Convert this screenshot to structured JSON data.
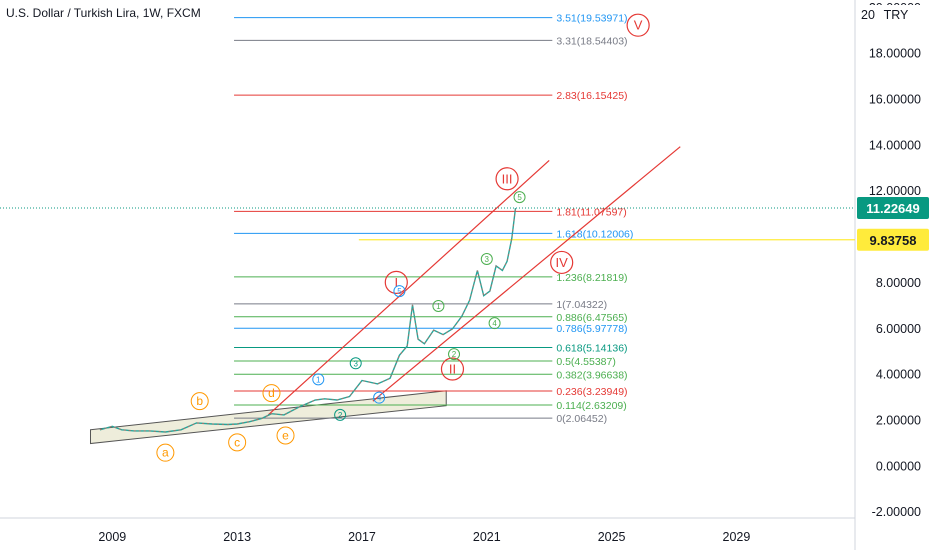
{
  "header": {
    "title": "U.S. Dollar / Turkish Lira, 1W, FXCM"
  },
  "colors": {
    "red": "#e53935",
    "blue": "#2196f3",
    "gray": "#787b86",
    "green": "#4caf50",
    "teal": "#089981",
    "orange": "#ff9800",
    "cyan": "#00bcd4",
    "yellow": "#ffeb3b",
    "price_tag_bg": "#089981",
    "yellow_tag_bg": "#ffeb3b",
    "channel_fill": "#ecebd7"
  },
  "chart_data": {
    "type": "line",
    "symbol": "U.S. Dollar / Turkish Lira, 1W, FXCM",
    "ylim": [
      -2.3,
      20.3
    ],
    "xlim": [
      2005.4,
      2032.8
    ],
    "y_axis": {
      "unit_label": "TRY",
      "ticks": [
        {
          "value": 20,
          "label": "20.00000"
        },
        {
          "value": 18,
          "label": "18.00000"
        },
        {
          "value": 16,
          "label": "16.00000"
        },
        {
          "value": 14,
          "label": "14.00000"
        },
        {
          "value": 12,
          "label": "12.00000"
        },
        {
          "value": 8,
          "label": "8.00000"
        },
        {
          "value": 6,
          "label": "6.00000"
        },
        {
          "value": 4,
          "label": "4.00000"
        },
        {
          "value": 2,
          "label": "2.00000"
        },
        {
          "value": 0,
          "label": "0.00000"
        },
        {
          "value": -2,
          "label": "-2.00000"
        }
      ]
    },
    "x_axis": {
      "ticks": [
        {
          "value": 2009,
          "label": "2009"
        },
        {
          "value": 2013,
          "label": "2013"
        },
        {
          "value": 2017,
          "label": "2017"
        },
        {
          "value": 2021,
          "label": "2021"
        },
        {
          "value": 2025,
          "label": "2025"
        },
        {
          "value": 2029,
          "label": "2029"
        }
      ]
    },
    "price_tags": [
      {
        "value": 11.22649,
        "label": "11.22649"
      },
      {
        "value": 9.83758,
        "label": "9.83758"
      }
    ],
    "series": [
      {
        "x": [
          2008.6,
          2009.0,
          2009.3,
          2009.7,
          2010.2,
          2010.7,
          2011.2,
          2011.7,
          2012.2,
          2012.7,
          2013.0,
          2013.4,
          2013.8,
          2014.1,
          2014.5,
          2015.0,
          2015.5,
          2015.8,
          2016.2,
          2016.6,
          2017.0,
          2017.5,
          2017.9,
          2018.2,
          2018.45,
          2018.62,
          2018.8,
          2019.0,
          2019.3,
          2019.6,
          2019.9,
          2020.2,
          2020.45,
          2020.7,
          2020.9,
          2021.1,
          2021.3,
          2021.5,
          2021.65,
          2021.8,
          2021.92
        ],
        "y": [
          1.55,
          1.7,
          1.55,
          1.5,
          1.5,
          1.45,
          1.55,
          1.85,
          1.8,
          1.78,
          1.8,
          1.9,
          2.05,
          2.25,
          2.2,
          2.55,
          2.85,
          2.9,
          2.85,
          3.0,
          3.7,
          3.55,
          3.8,
          4.8,
          5.2,
          7.0,
          5.5,
          5.3,
          5.9,
          5.7,
          5.95,
          6.5,
          7.2,
          8.5,
          7.4,
          7.6,
          8.7,
          8.5,
          8.9,
          9.9,
          11.22
        ]
      }
    ],
    "fib_levels": [
      {
        "value": 19.53,
        "label": "3.51(19.53971)",
        "color": "blue"
      },
      {
        "value": 18.54,
        "label": "3.31(18.54403)",
        "color": "gray"
      },
      {
        "value": 16.15,
        "label": "2.83(16.15425)",
        "color": "red"
      },
      {
        "value": 11.08,
        "label": "1.81(11.07597)",
        "color": "red"
      },
      {
        "value": 10.12,
        "label": "1.618(10.12006)",
        "color": "blue"
      },
      {
        "value": 8.22,
        "label": "1.236(8.21819)",
        "color": "green"
      },
      {
        "value": 7.04,
        "label": "1(7.04322)",
        "color": "gray"
      },
      {
        "value": 6.48,
        "label": "0.886(6.47565)",
        "color": "green"
      },
      {
        "value": 5.98,
        "label": "0.786(5.97778)",
        "color": "blue"
      },
      {
        "value": 5.14,
        "label": "0.618(5.14136)",
        "color": "teal"
      },
      {
        "value": 4.55,
        "label": "0.5(4.55387)",
        "color": "green"
      },
      {
        "value": 3.97,
        "label": "0.382(3.96638)",
        "color": "green"
      },
      {
        "value": 3.24,
        "label": "0.236(3.23949)",
        "color": "red"
      },
      {
        "value": 2.63,
        "label": "0.114(2.63209)",
        "color": "green"
      },
      {
        "value": 2.06,
        "label": "0(2.06452)",
        "color": "gray"
      }
    ],
    "wave_labels": [
      {
        "text": "I",
        "x": 2018.1,
        "y": 7.98,
        "color": "red",
        "big": true
      },
      {
        "text": "II",
        "x": 2019.9,
        "y": 4.2,
        "color": "red",
        "big": true
      },
      {
        "text": "III",
        "x": 2021.65,
        "y": 12.5,
        "color": "red",
        "big": true
      },
      {
        "text": "IV",
        "x": 2023.4,
        "y": 8.85,
        "color": "red",
        "big": true
      },
      {
        "text": "V",
        "x": 2025.85,
        "y": 19.2,
        "color": "red",
        "big": true
      },
      {
        "text": "a",
        "x": 2010.7,
        "y": 0.55,
        "color": "orange",
        "big": false
      },
      {
        "text": "b",
        "x": 2011.8,
        "y": 2.8,
        "color": "orange",
        "big": false
      },
      {
        "text": "c",
        "x": 2013.0,
        "y": 1.0,
        "color": "orange",
        "big": false
      },
      {
        "text": "d",
        "x": 2014.1,
        "y": 3.15,
        "color": "orange",
        "big": false
      },
      {
        "text": "e",
        "x": 2014.55,
        "y": 1.3,
        "color": "orange",
        "big": false
      },
      {
        "text": "1",
        "x": 2015.6,
        "y": 3.75,
        "color": "blue",
        "big": false
      },
      {
        "text": "2",
        "x": 2016.3,
        "y": 2.2,
        "color": "teal",
        "big": false
      },
      {
        "text": "3",
        "x": 2016.8,
        "y": 4.45,
        "color": "teal",
        "big": false
      },
      {
        "text": "4",
        "x": 2017.55,
        "y": 2.95,
        "color": "blue",
        "big": false
      },
      {
        "text": "5",
        "x": 2018.2,
        "y": 7.6,
        "color": "blue",
        "big": false
      },
      {
        "text": "1",
        "x": 2019.45,
        "y": 6.95,
        "color": "green",
        "big": false
      },
      {
        "text": "2",
        "x": 2019.95,
        "y": 4.85,
        "color": "green",
        "big": false
      },
      {
        "text": "3",
        "x": 2021.0,
        "y": 9.0,
        "color": "green",
        "big": false
      },
      {
        "text": "4",
        "x": 2021.25,
        "y": 6.2,
        "color": "green",
        "big": false
      },
      {
        "text": "5",
        "x": 2022.05,
        "y": 11.7,
        "color": "green",
        "big": false
      }
    ],
    "trend_lines": [
      {
        "x1": 2014.0,
        "y1": 2.2,
        "x2": 2023.0,
        "y2": 13.3,
        "color": "red"
      },
      {
        "x1": 2017.35,
        "y1": 2.8,
        "x2": 2027.2,
        "y2": 13.9,
        "color": "red"
      }
    ],
    "triangle_channel": {
      "top": [
        [
          2008.3,
          1.55
        ],
        [
          2019.7,
          3.25
        ]
      ],
      "bottom": [
        [
          2008.3,
          0.95
        ],
        [
          2019.7,
          2.6
        ]
      ]
    },
    "horizontal_line": {
      "value": 9.84,
      "x_start": 2016.9,
      "color": "yellow"
    }
  }
}
